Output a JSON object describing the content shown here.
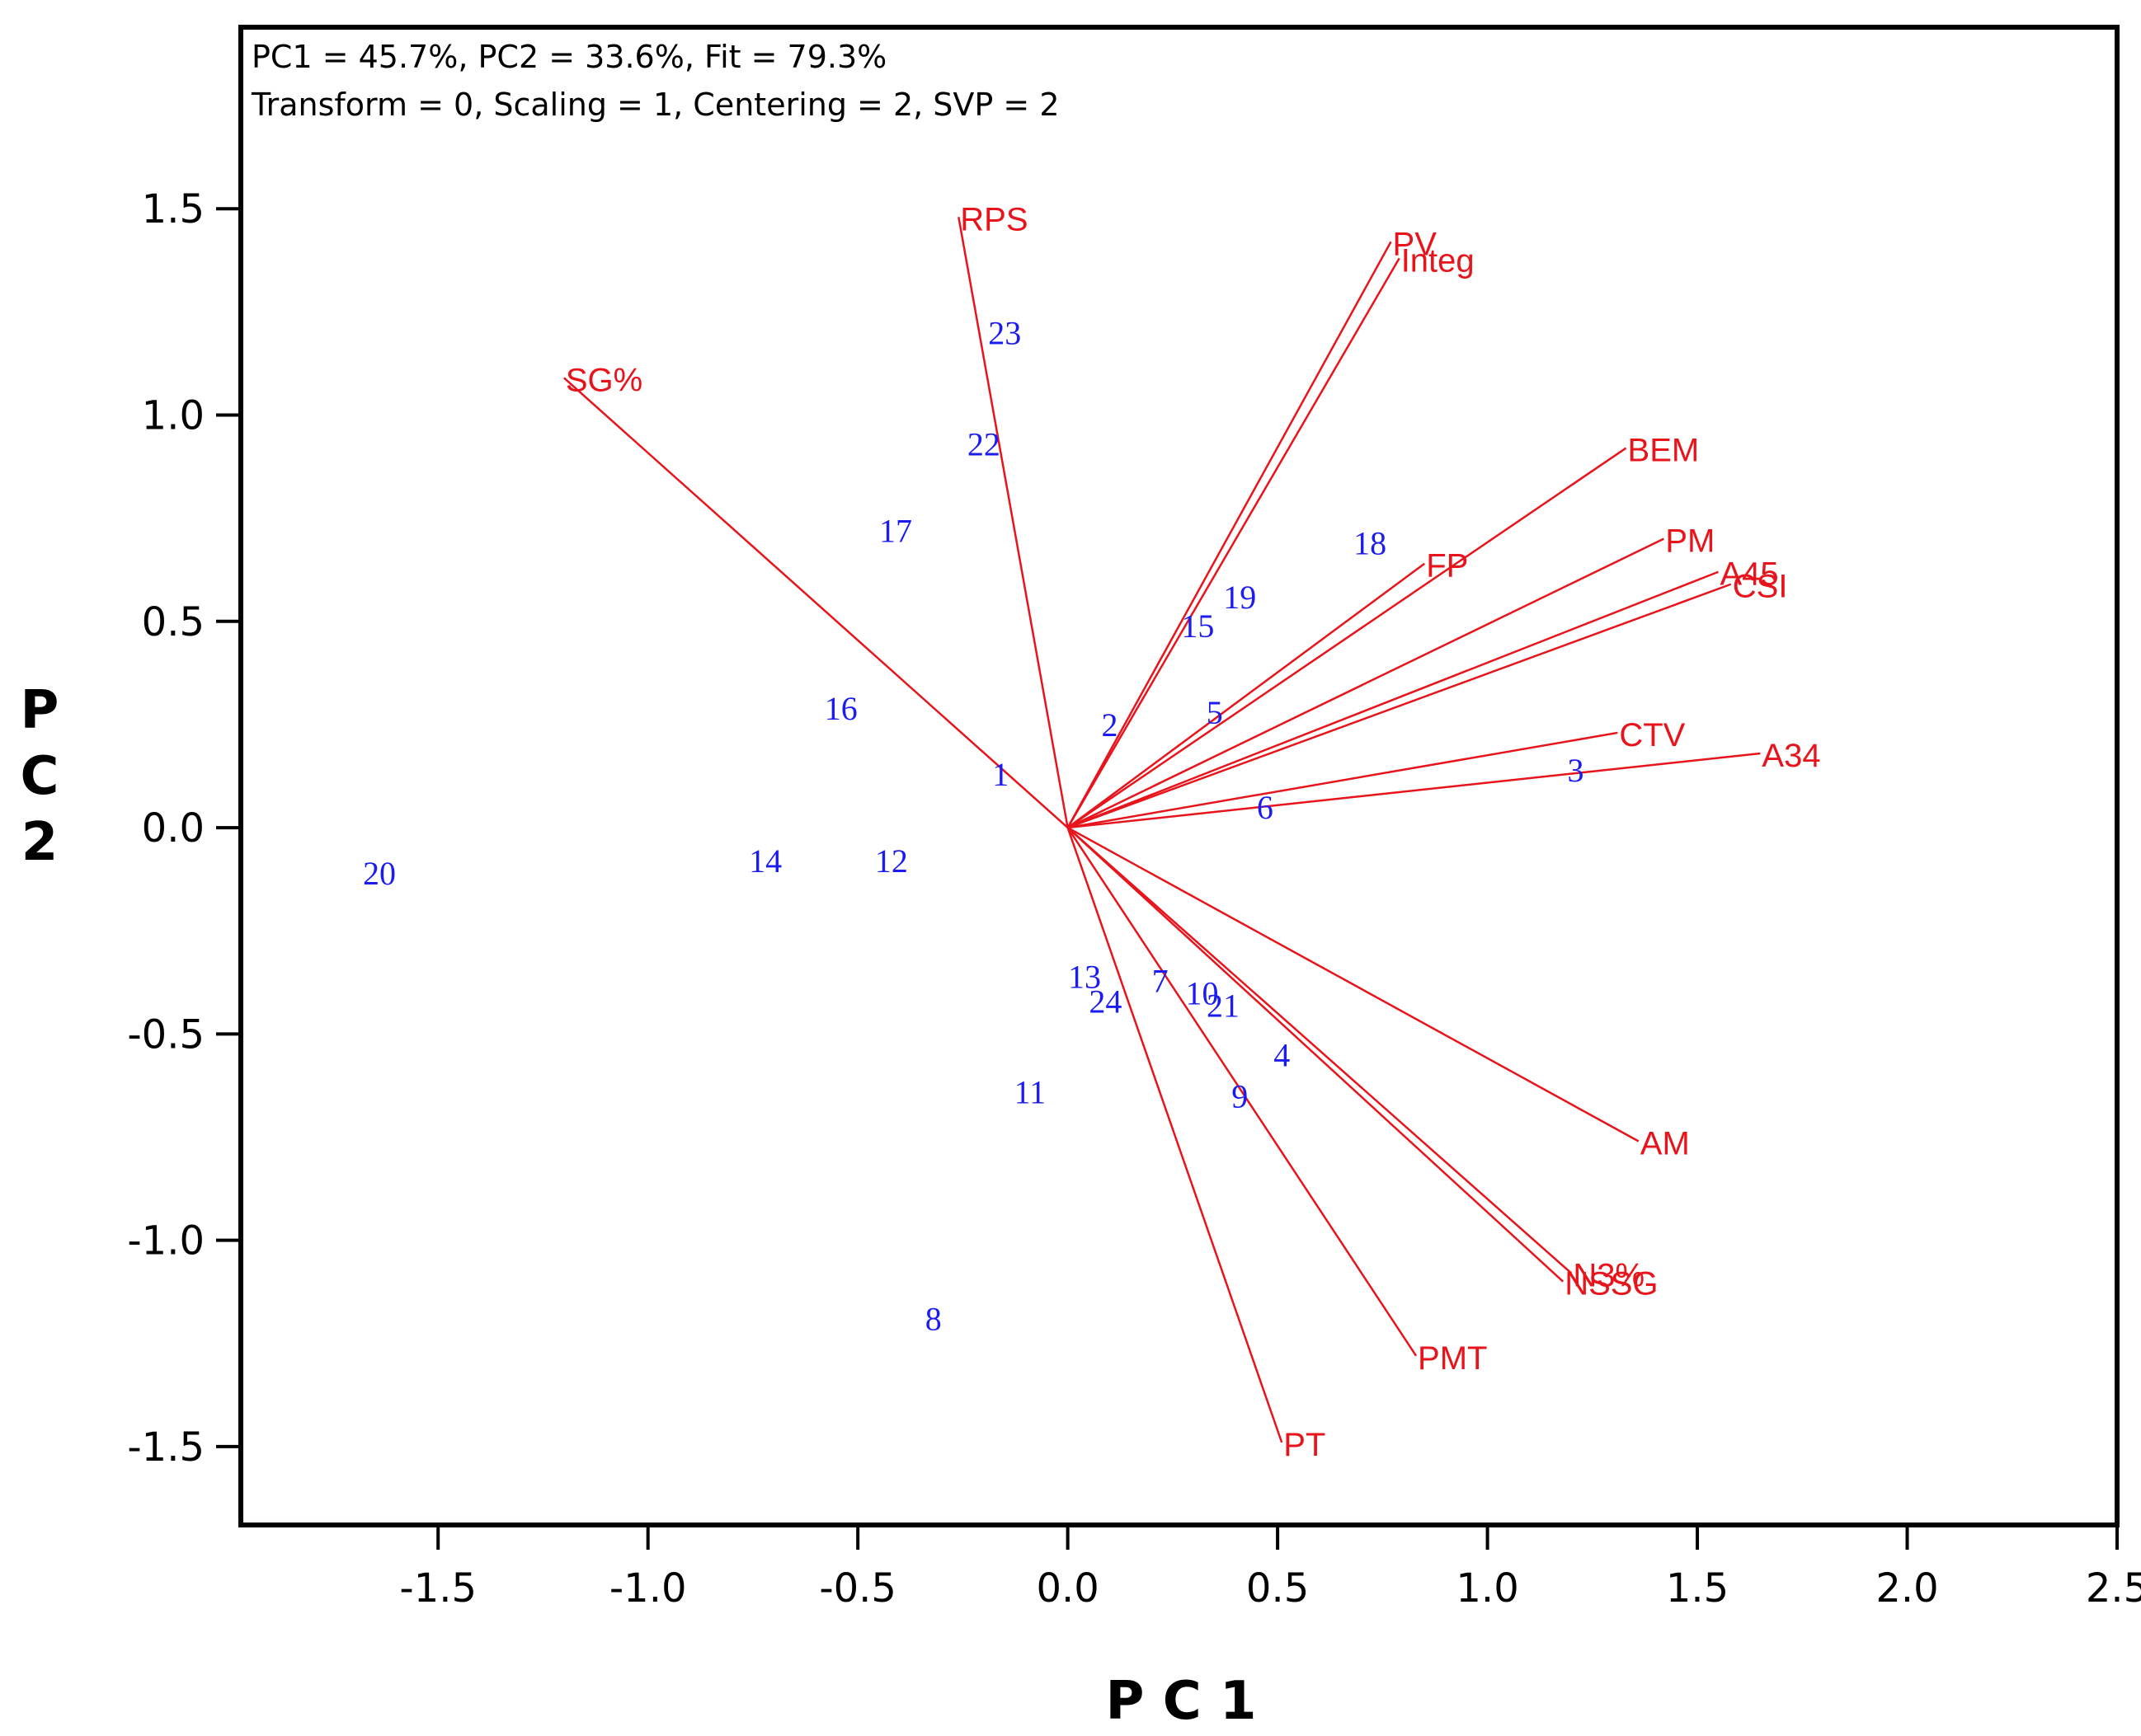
{
  "chart_data": {
    "type": "scatter",
    "subtype": "biplot",
    "annotations": [
      "PC1 = 45.7%, PC2 = 33.6%, Fit = 79.3%",
      "Transform = 0, Scaling = 1, Centering = 2, SVP = 2"
    ],
    "xlabel": "P C 1",
    "ylabel_lines": [
      "P",
      "C",
      "2"
    ],
    "xlim": [
      -1.97,
      2.5
    ],
    "ylim": [
      -1.69,
      1.94
    ],
    "xticks": [
      -1.5,
      -1.0,
      -0.5,
      0.0,
      0.5,
      1.0,
      1.5,
      2.0,
      2.5
    ],
    "yticks": [
      1.5,
      1.0,
      0.5,
      0.0,
      -0.5,
      -1.0,
      -1.5
    ],
    "xtick_labels": [
      "-1.5",
      "-1.0",
      "-0.5",
      "0.0",
      "0.5",
      "1.0",
      "1.5",
      "2.0",
      "2.5"
    ],
    "ytick_labels": [
      "1.5",
      "1.0",
      "0.5",
      "0.0",
      "-0.5",
      "-1.0",
      "-1.5"
    ],
    "vector_color": "#e8141c",
    "observation_color": "#1c1cf0",
    "vectors": [
      {
        "name": "RPS",
        "x": -0.26,
        "y": 1.48
      },
      {
        "name": "SG%",
        "x": -1.2,
        "y": 1.09
      },
      {
        "name": "PV",
        "x": 0.77,
        "y": 1.42
      },
      {
        "name": "Integ",
        "x": 0.79,
        "y": 1.38
      },
      {
        "name": "BEM",
        "x": 1.33,
        "y": 0.92
      },
      {
        "name": "FP",
        "x": 0.85,
        "y": 0.64
      },
      {
        "name": "PM",
        "x": 1.42,
        "y": 0.7
      },
      {
        "name": "A45",
        "x": 1.55,
        "y": 0.62
      },
      {
        "name": "CSI",
        "x": 1.58,
        "y": 0.59
      },
      {
        "name": "CTV",
        "x": 1.31,
        "y": 0.23
      },
      {
        "name": "A34",
        "x": 1.65,
        "y": 0.18
      },
      {
        "name": "AM",
        "x": 1.36,
        "y": -0.76
      },
      {
        "name": "N3%",
        "x": 1.2,
        "y": -1.08
      },
      {
        "name": "NSSG",
        "x": 1.18,
        "y": -1.1
      },
      {
        "name": "PMT",
        "x": 0.83,
        "y": -1.28
      },
      {
        "name": "PT",
        "x": 0.51,
        "y": -1.49
      }
    ],
    "observations": [
      {
        "label": "1",
        "x": -0.16,
        "y": 0.13
      },
      {
        "label": "2",
        "x": 0.1,
        "y": 0.25
      },
      {
        "label": "3",
        "x": 1.21,
        "y": 0.14
      },
      {
        "label": "4",
        "x": 0.51,
        "y": -0.55
      },
      {
        "label": "5",
        "x": 0.35,
        "y": 0.28
      },
      {
        "label": "6",
        "x": 0.47,
        "y": 0.05
      },
      {
        "label": "7",
        "x": 0.22,
        "y": -0.37
      },
      {
        "label": "8",
        "x": -0.32,
        "y": -1.19
      },
      {
        "label": "9",
        "x": 0.41,
        "y": -0.65
      },
      {
        "label": "10",
        "x": 0.32,
        "y": -0.4
      },
      {
        "label": "11",
        "x": -0.09,
        "y": -0.64
      },
      {
        "label": "12",
        "x": -0.42,
        "y": -0.08
      },
      {
        "label": "13",
        "x": 0.04,
        "y": -0.36
      },
      {
        "label": "14",
        "x": -0.72,
        "y": -0.08
      },
      {
        "label": "15",
        "x": 0.31,
        "y": 0.49
      },
      {
        "label": "16",
        "x": -0.54,
        "y": 0.29
      },
      {
        "label": "17",
        "x": -0.41,
        "y": 0.72
      },
      {
        "label": "18",
        "x": 0.72,
        "y": 0.69
      },
      {
        "label": "19",
        "x": 0.41,
        "y": 0.56
      },
      {
        "label": "20",
        "x": -1.64,
        "y": -0.11
      },
      {
        "label": "21",
        "x": 0.37,
        "y": -0.43
      },
      {
        "label": "22",
        "x": -0.2,
        "y": 0.93
      },
      {
        "label": "23",
        "x": -0.15,
        "y": 1.2
      },
      {
        "label": "24",
        "x": 0.09,
        "y": -0.42
      }
    ]
  }
}
